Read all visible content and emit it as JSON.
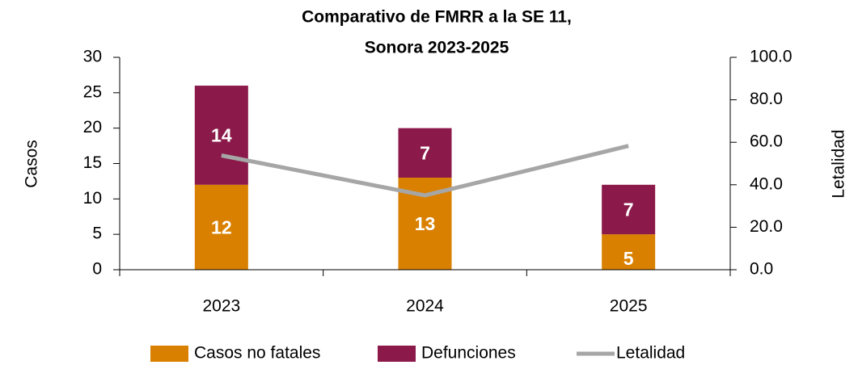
{
  "chart_data": {
    "type": "stacked_bar_line",
    "title": [
      "Comparativo de FMRR a la SE 11,",
      "Sonora 2023-2025"
    ],
    "y_label": "Casos",
    "y2_label": "Letalidad",
    "categories": [
      "2023",
      "2024",
      "2025"
    ],
    "series": [
      {
        "name": "Casos no fatales",
        "color": "#d98000",
        "type": "bar",
        "values": [
          12,
          13,
          5
        ]
      },
      {
        "name": "Defunciones",
        "color": "#8b1a4a",
        "type": "bar",
        "values": [
          14,
          7,
          7
        ]
      },
      {
        "name": "Letalidad",
        "color": "#a6a6a6",
        "type": "line",
        "axis": "y2",
        "values": [
          53.8,
          35.0,
          58.3
        ]
      }
    ],
    "ylim": [
      0,
      30
    ],
    "yticks": [
      0,
      5,
      10,
      15,
      20,
      25,
      30
    ],
    "y2lim": [
      0,
      100
    ],
    "y2ticks": [
      {
        "value": 0,
        "label": "0.0"
      },
      {
        "value": 20,
        "label": "20.0"
      },
      {
        "value": 40,
        "label": "40.0"
      },
      {
        "value": 60,
        "label": "60.0"
      },
      {
        "value": 80,
        "label": "80.0"
      },
      {
        "value": 100,
        "label": "100.0"
      }
    ],
    "legend": "bottom"
  }
}
